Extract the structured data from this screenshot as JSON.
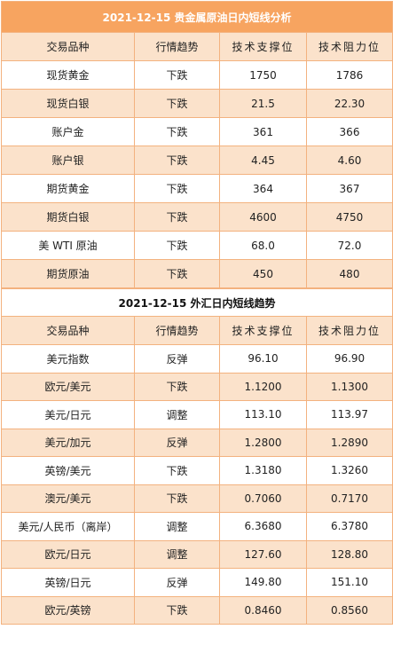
{
  "section1": {
    "title": "2021-12-15 贵金属原油日内短线分析",
    "headers": [
      "交易品种",
      "行情趋势",
      "技术支撑位",
      "技术阻力位"
    ],
    "rows": [
      [
        "现货黄金",
        "下跌",
        "1750",
        "1786"
      ],
      [
        "现货白银",
        "下跌",
        "21.5",
        "22.30"
      ],
      [
        "账户金",
        "下跌",
        "361",
        "366"
      ],
      [
        "账户银",
        "下跌",
        "4.45",
        "4.60"
      ],
      [
        "期货黄金",
        "下跌",
        "364",
        "367"
      ],
      [
        "期货白银",
        "下跌",
        "4600",
        "4750"
      ],
      [
        "美 WTI 原油",
        "下跌",
        "68.0",
        "72.0"
      ],
      [
        "期货原油",
        "下跌",
        "450",
        "480"
      ]
    ]
  },
  "section2": {
    "title": "2021-12-15 外汇日内短线趋势",
    "headers": [
      "交易品种",
      "行情趋势",
      "技术支撑位",
      "技术阻力位"
    ],
    "rows": [
      [
        "美元指数",
        "反弹",
        "96.10",
        "96.90"
      ],
      [
        "欧元/美元",
        "下跌",
        "1.1200",
        "1.1300"
      ],
      [
        "美元/日元",
        "调整",
        "113.10",
        "113.97"
      ],
      [
        "美元/加元",
        "反弹",
        "1.2800",
        "1.2890"
      ],
      [
        "英镑/美元",
        "下跌",
        "1.3180",
        "1.3260"
      ],
      [
        "澳元/美元",
        "下跌",
        "0.7060",
        "0.7170"
      ],
      [
        "美元/人民币（离岸）",
        "调整",
        "6.3680",
        "6.3780"
      ],
      [
        "欧元/日元",
        "调整",
        "127.60",
        "128.80"
      ],
      [
        "英镑/日元",
        "反弹",
        "149.80",
        "151.10"
      ],
      [
        "欧元/英镑",
        "下跌",
        "0.8460",
        "0.8560"
      ]
    ]
  },
  "colors": {
    "title_bg": "#f7a460",
    "stripe_bg": "#fbe2cb",
    "border": "#f3b27f"
  }
}
